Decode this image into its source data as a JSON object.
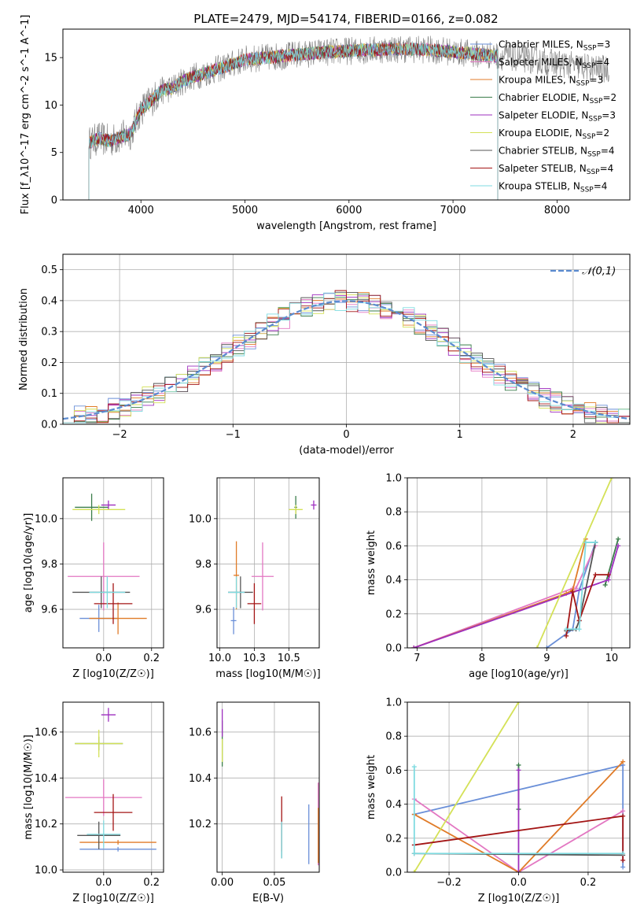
{
  "figure": {
    "title": "PLATE=2479, MJD=54174, FIBERID=0166, z=0.082",
    "colors": {
      "Chabrier MILES": "#6a8fd8",
      "Salpeter MILES": "#e377c2",
      "Kroupa MILES": "#e07b28",
      "Chabrier ELODIE": "#3a7d4a",
      "Salpeter ELODIE": "#9e2fbf",
      "Kroupa ELODIE": "#d4e157",
      "Chabrier STELIB": "#555555",
      "Salpeter STELIB": "#a31515",
      "Kroupa STELIB": "#7fdbe0"
    }
  },
  "chart_data": [
    {
      "id": "spectrum",
      "type": "line",
      "title": "PLATE=2479, MJD=54174, FIBERID=0166, z=0.082",
      "xlabel": "wavelength [Angstrom, rest frame]",
      "ylabel": "Flux [f_λ10^-17 erg cm^-2 s^-1 A^-1]",
      "xlim": [
        3250,
        8700
      ],
      "ylim": [
        0,
        18
      ],
      "xticks": [
        4000,
        5000,
        6000,
        7000,
        8000
      ],
      "yticks": [
        0,
        5,
        10,
        15
      ],
      "grid": false,
      "legend_position": "top-right",
      "legend": [
        {
          "model": "Chabrier MILES",
          "n": "3"
        },
        {
          "model": "Salpeter MILES",
          "n": "4"
        },
        {
          "model": "Kroupa MILES",
          "n": "3"
        },
        {
          "model": "Chabrier ELODIE",
          "n": "2"
        },
        {
          "model": "Salpeter ELODIE",
          "n": "3"
        },
        {
          "model": "Kroupa ELODIE",
          "n": "2"
        },
        {
          "model": "Chabrier STELIB",
          "n": "4"
        },
        {
          "model": "Salpeter STELIB",
          "n": "4"
        },
        {
          "model": "Kroupa STELIB",
          "n": "4"
        }
      ],
      "continuum": {
        "x": [
          3500,
          3600,
          3700,
          3800,
          3900,
          4000,
          4100,
          4200,
          4300,
          4400,
          4500,
          4600,
          4800,
          5000,
          5200,
          5400,
          5600,
          5800,
          6000,
          6200,
          6400,
          6600,
          6800,
          7000,
          7200,
          7400,
          7600,
          7800,
          8000,
          8200,
          8400
        ],
        "y": [
          6.0,
          6.5,
          6.2,
          6.6,
          7.0,
          9.5,
          10.5,
          11.5,
          11.8,
          12.5,
          13.0,
          13.3,
          14.0,
          14.8,
          15.0,
          15.2,
          15.4,
          15.6,
          15.7,
          15.8,
          15.9,
          15.9,
          15.8,
          15.6,
          15.4,
          15.2,
          15.0,
          14.7,
          14.4,
          14.1,
          13.8
        ]
      },
      "model_wavelength_range": [
        3500,
        7430
      ],
      "observed_wavelength_range": [
        3500,
        8500
      ]
    },
    {
      "id": "residuals",
      "type": "histogram",
      "xlabel": "(data-model)/error",
      "ylabel": "Normed distribution",
      "xlim": [
        -2.5,
        2.5
      ],
      "ylim": [
        0,
        0.55
      ],
      "xticks": [
        -2,
        -1,
        0,
        1,
        2
      ],
      "yticks": [
        0.0,
        0.1,
        0.2,
        0.3,
        0.4,
        0.5
      ],
      "grid": true,
      "legend_position": "top-right",
      "reference_curve": {
        "label": "𝒩(0,1)",
        "mean": 0,
        "sigma": 1,
        "style": "dashed",
        "color": "#5b8bd0"
      },
      "bin_width": 0.1
    },
    {
      "id": "age_vs_Z",
      "type": "scatter-errorbar",
      "xlabel": "Z [log10(Z/Z☉)]",
      "ylabel": "age [log10(age/yr)]",
      "xlim": [
        -0.17,
        0.25
      ],
      "ylim": [
        9.43,
        10.18
      ],
      "xticks": [
        0.0,
        0.2
      ],
      "yticks": [
        9.6,
        9.8,
        10.0
      ],
      "grid": true,
      "points": [
        {
          "model": "Chabrier MILES",
          "x": -0.02,
          "xerr": 0.08,
          "y": 9.56,
          "yerr": 0.06
        },
        {
          "model": "Salpeter MILES",
          "x": 0.0,
          "xerr": 0.15,
          "y": 9.745,
          "yerr": 0.15
        },
        {
          "model": "Kroupa MILES",
          "x": 0.06,
          "xerr": 0.12,
          "y": 9.56,
          "yerr": 0.07
        },
        {
          "model": "Chabrier ELODIE",
          "x": -0.05,
          "xerr": 0.07,
          "y": 10.05,
          "yerr": 0.06
        },
        {
          "model": "Salpeter ELODIE",
          "x": 0.02,
          "xerr": 0.03,
          "y": 10.06,
          "yerr": 0.02
        },
        {
          "model": "Kroupa ELODIE",
          "x": -0.02,
          "xerr": 0.11,
          "y": 10.04,
          "yerr": 0.02
        },
        {
          "model": "Chabrier STELIB",
          "x": -0.01,
          "xerr": 0.12,
          "y": 9.675,
          "yerr": 0.07
        },
        {
          "model": "Salpeter STELIB",
          "x": 0.04,
          "xerr": 0.08,
          "y": 9.625,
          "yerr": 0.09
        },
        {
          "model": "Kroupa STELIB",
          "x": 0.015,
          "xerr": 0.075,
          "y": 9.675,
          "yerr": 0.07
        }
      ]
    },
    {
      "id": "age_vs_mass",
      "type": "scatter-errorbar",
      "xlabel": "mass [log10(M/M☉)]",
      "ylabel": "",
      "xlim": [
        9.98,
        10.72
      ],
      "ylim": [
        9.43,
        10.18
      ],
      "xticks": [
        10.0,
        10.25,
        10.5
      ],
      "yticks": [
        9.6,
        9.8,
        10.0
      ],
      "grid": true,
      "points": [
        {
          "model": "Chabrier MILES",
          "x": 10.1,
          "xerr": 0.02,
          "y": 9.55,
          "yerr": 0.06
        },
        {
          "model": "Salpeter MILES",
          "x": 10.31,
          "xerr": 0.08,
          "y": 9.745,
          "yerr": 0.15
        },
        {
          "model": "Kroupa MILES",
          "x": 10.12,
          "xerr": 0.02,
          "y": 9.75,
          "yerr": 0.15
        },
        {
          "model": "Chabrier ELODIE",
          "x": 10.55,
          "xerr": 0.01,
          "y": 10.05,
          "yerr": 0.05
        },
        {
          "model": "Salpeter ELODIE",
          "x": 10.68,
          "xerr": 0.02,
          "y": 10.06,
          "yerr": 0.02
        },
        {
          "model": "Kroupa ELODIE",
          "x": 10.55,
          "xerr": 0.05,
          "y": 10.04,
          "yerr": 0.02
        },
        {
          "model": "Chabrier STELIB",
          "x": 10.15,
          "xerr": 0.09,
          "y": 9.675,
          "yerr": 0.07
        },
        {
          "model": "Salpeter STELIB",
          "x": 10.25,
          "xerr": 0.05,
          "y": 9.625,
          "yerr": 0.09
        },
        {
          "model": "Kroupa STELIB",
          "x": 10.12,
          "xerr": 0.06,
          "y": 9.675,
          "yerr": 0.07
        }
      ]
    },
    {
      "id": "massweight_vs_age",
      "type": "line",
      "xlabel": "age [log10(age/yr)]",
      "ylabel": "mass weight",
      "xlim": [
        6.85,
        10.28
      ],
      "ylim": [
        0,
        1.0
      ],
      "xticks": [
        7,
        8,
        9,
        10
      ],
      "yticks": [
        0.0,
        0.2,
        0.4,
        0.6,
        0.8,
        1.0
      ],
      "grid": true,
      "series": [
        {
          "model": "Chabrier MILES",
          "x": [
            9.0,
            9.4,
            9.5,
            9.75
          ],
          "y": [
            0.0,
            0.11,
            0.34,
            0.62
          ]
        },
        {
          "model": "Salpeter MILES",
          "x": [
            6.95,
            9.4,
            9.45,
            9.75
          ],
          "y": [
            0.0,
            0.35,
            0.35,
            0.6
          ]
        },
        {
          "model": "Kroupa MILES",
          "x": [
            6.95,
            9.3,
            9.4,
            9.6
          ],
          "y": [
            0.0,
            0.32,
            0.34,
            0.64
          ]
        },
        {
          "model": "Chabrier ELODIE",
          "x": [
            9.9,
            10.1
          ],
          "y": [
            0.37,
            0.64
          ]
        },
        {
          "model": "Salpeter ELODIE",
          "x": [
            6.95,
            9.95,
            10.1
          ],
          "y": [
            0.0,
            0.4,
            0.6
          ]
        },
        {
          "model": "Kroupa ELODIE",
          "x": [
            8.85,
            10.0
          ],
          "y": [
            0.0,
            1.0
          ]
        },
        {
          "model": "Chabrier STELIB",
          "x": [
            9.3,
            9.45,
            9.5,
            9.75
          ],
          "y": [
            0.1,
            0.11,
            0.16,
            0.62
          ]
        },
        {
          "model": "Salpeter STELIB",
          "x": [
            9.3,
            9.4,
            9.5,
            9.75,
            9.95
          ],
          "y": [
            0.07,
            0.33,
            0.16,
            0.43,
            0.43
          ]
        },
        {
          "model": "Kroupa STELIB",
          "x": [
            9.3,
            9.5,
            9.6,
            9.75
          ],
          "y": [
            0.11,
            0.11,
            0.62,
            0.62
          ]
        }
      ]
    },
    {
      "id": "mass_vs_Z",
      "type": "scatter-errorbar",
      "xlabel": "Z [log10(Z/Z☉)]",
      "ylabel": "mass [log10(M/M☉)]",
      "xlim": [
        -0.17,
        0.25
      ],
      "ylim": [
        9.99,
        10.73
      ],
      "xticks": [
        0.0,
        0.2
      ],
      "yticks": [
        10.0,
        10.2,
        10.4,
        10.6
      ],
      "grid": true,
      "points": [
        {
          "model": "Chabrier MILES",
          "x": 0.06,
          "xerr": 0.16,
          "y": 10.09,
          "yerr": 0.01
        },
        {
          "model": "Salpeter MILES",
          "x": 0.0,
          "xerr": 0.16,
          "y": 10.315,
          "yerr": 0.08
        },
        {
          "model": "Kroupa MILES",
          "x": 0.06,
          "xerr": 0.16,
          "y": 10.12,
          "yerr": 0.01
        },
        {
          "model": "Chabrier ELODIE",
          "x": -0.02,
          "xerr": 0.1,
          "y": 10.55,
          "yerr": 0.03
        },
        {
          "model": "Salpeter ELODIE",
          "x": 0.02,
          "xerr": 0.03,
          "y": 10.675,
          "yerr": 0.03
        },
        {
          "model": "Kroupa ELODIE",
          "x": -0.02,
          "xerr": 0.1,
          "y": 10.55,
          "yerr": 0.06
        },
        {
          "model": "Chabrier STELIB",
          "x": -0.02,
          "xerr": 0.09,
          "y": 10.15,
          "yerr": 0.06
        },
        {
          "model": "Salpeter STELIB",
          "x": 0.04,
          "xerr": 0.08,
          "y": 10.25,
          "yerr": 0.08
        },
        {
          "model": "Kroupa STELIB",
          "x": 0.0,
          "xerr": 0.07,
          "y": 10.155,
          "yerr": 0.06
        }
      ]
    },
    {
      "id": "mass_vs_ebv",
      "type": "scatter-errorbar",
      "xlabel": "E(B-V)",
      "ylabel": "",
      "xlim": [
        -0.005,
        0.093
      ],
      "ylim": [
        9.99,
        10.73
      ],
      "xticks": [
        0.0,
        0.05
      ],
      "yticks": [
        10.2,
        10.4,
        10.6
      ],
      "grid": true,
      "points": [
        {
          "model": "Chabrier MILES",
          "x": 0.083,
          "xerr": 0.0,
          "y": 10.155,
          "yerr": 0.13
        },
        {
          "model": "Salpeter MILES",
          "x": 0.092,
          "xerr": 0.0,
          "y": 10.2,
          "yerr": 0.18
        },
        {
          "model": "Kroupa MILES",
          "x": 0.092,
          "xerr": 0.0,
          "y": 10.15,
          "yerr": 0.12
        },
        {
          "model": "Chabrier ELODIE",
          "x": 0.0,
          "xerr": 0.0,
          "y": 10.55,
          "yerr": 0.1
        },
        {
          "model": "Salpeter ELODIE",
          "x": 0.0,
          "xerr": 0.0,
          "y": 10.64,
          "yerr": 0.06
        },
        {
          "model": "Kroupa ELODIE",
          "x": 0.0,
          "xerr": 0.0,
          "y": 10.52,
          "yerr": 0.05
        },
        {
          "model": "Chabrier STELIB",
          "x": 0.057,
          "xerr": 0.0,
          "y": 10.13,
          "yerr": 0.08
        },
        {
          "model": "Salpeter STELIB",
          "x": 0.057,
          "xerr": 0.0,
          "y": 10.2,
          "yerr": 0.12
        },
        {
          "model": "Kroupa STELIB",
          "x": 0.057,
          "xerr": 0.0,
          "y": 10.13,
          "yerr": 0.08
        }
      ]
    },
    {
      "id": "massweight_vs_Z",
      "type": "line",
      "xlabel": "Z [log10(Z/Z☉)]",
      "ylabel": "mass weight",
      "xlim": [
        -0.32,
        0.32
      ],
      "ylim": [
        0,
        1.0
      ],
      "xticks": [
        -0.2,
        0.0,
        0.2
      ],
      "yticks": [
        0.0,
        0.2,
        0.4,
        0.6,
        0.8,
        1.0
      ],
      "grid": true,
      "series": [
        {
          "model": "Chabrier MILES",
          "x": [
            -0.3,
            0.3,
            0.3
          ],
          "y": [
            0.34,
            0.63,
            0.03
          ]
        },
        {
          "model": "Salpeter MILES",
          "x": [
            -0.3,
            0.0,
            0.3
          ],
          "y": [
            0.43,
            0.0,
            0.36
          ]
        },
        {
          "model": "Kroupa MILES",
          "x": [
            -0.3,
            0.0,
            0.3
          ],
          "y": [
            0.34,
            0.0,
            0.65
          ]
        },
        {
          "model": "Chabrier ELODIE",
          "x": [
            0.0,
            0.0
          ],
          "y": [
            0.37,
            0.63
          ]
        },
        {
          "model": "Salpeter ELODIE",
          "x": [
            0.0,
            0.0
          ],
          "y": [
            0.0,
            0.6
          ]
        },
        {
          "model": "Kroupa ELODIE",
          "x": [
            -0.3,
            0.0
          ],
          "y": [
            0.0,
            1.0
          ]
        },
        {
          "model": "Chabrier STELIB",
          "x": [
            -0.3,
            0.3
          ],
          "y": [
            0.11,
            0.1
          ]
        },
        {
          "model": "Salpeter STELIB",
          "x": [
            -0.3,
            0.3,
            0.3
          ],
          "y": [
            0.16,
            0.33,
            0.07
          ]
        },
        {
          "model": "Kroupa STELIB",
          "x": [
            -0.3,
            -0.3,
            0.3
          ],
          "y": [
            0.62,
            0.11,
            0.11
          ]
        }
      ]
    }
  ]
}
